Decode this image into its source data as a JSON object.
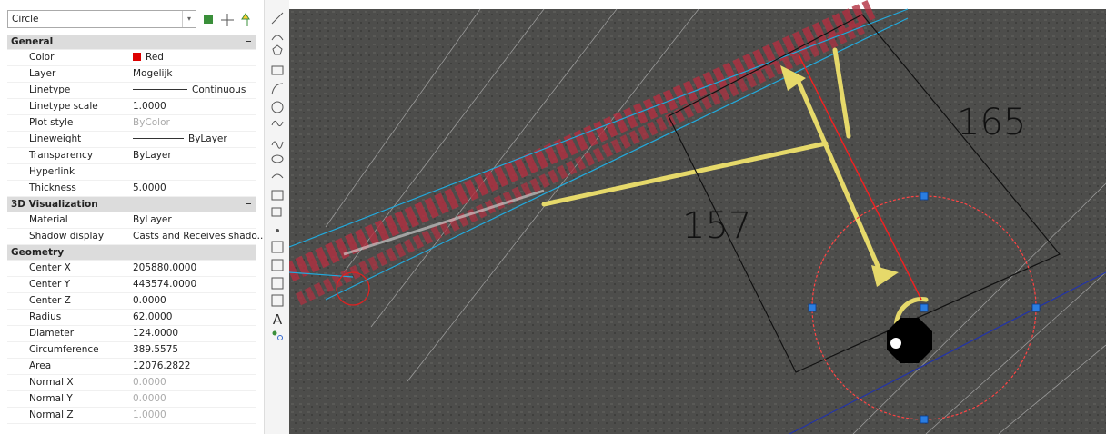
{
  "selector": "Circle",
  "sections": [
    {
      "title": "General",
      "rows": [
        {
          "name": "Color",
          "value": "Red"
        },
        {
          "name": "Layer",
          "value": "Mogelijk"
        },
        {
          "name": "Linetype",
          "value": "Continuous"
        },
        {
          "name": "Linetype scale",
          "value": "1.0000"
        },
        {
          "name": "Plot style",
          "value": "ByColor",
          "muted": true
        },
        {
          "name": "Lineweight",
          "value": "ByLayer"
        },
        {
          "name": "Transparency",
          "value": "ByLayer"
        },
        {
          "name": "Hyperlink",
          "value": ""
        },
        {
          "name": "Thickness",
          "value": "5.0000"
        }
      ]
    },
    {
      "title": "3D Visualization",
      "rows": [
        {
          "name": "Material",
          "value": "ByLayer"
        },
        {
          "name": "Shadow display",
          "value": "Casts and Receives shado..."
        }
      ]
    },
    {
      "title": "Geometry",
      "rows": [
        {
          "name": "Center X",
          "value": "205880.0000"
        },
        {
          "name": "Center Y",
          "value": "443574.0000"
        },
        {
          "name": "Center Z",
          "value": "0.0000"
        },
        {
          "name": "Radius",
          "value": "62.0000"
        },
        {
          "name": "Diameter",
          "value": "124.0000"
        },
        {
          "name": "Circumference",
          "value": "389.5575"
        },
        {
          "name": "Area",
          "value": "12076.2822"
        },
        {
          "name": "Normal X",
          "value": "0.0000",
          "muted": true
        },
        {
          "name": "Normal Y",
          "value": "0.0000",
          "muted": true
        },
        {
          "name": "Normal Z",
          "value": "1.0000",
          "muted": true
        }
      ]
    }
  ],
  "toolbar_text": "A",
  "canvas": {
    "dimensions": [
      "157",
      "165"
    ]
  }
}
